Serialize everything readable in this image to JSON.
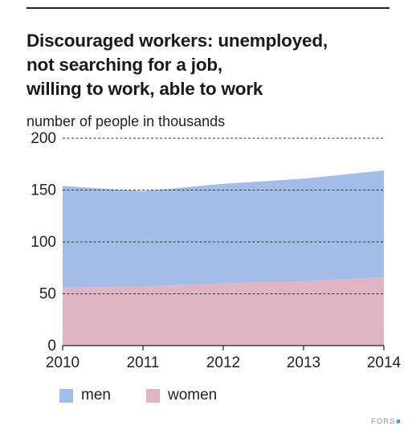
{
  "chart_data": {
    "type": "area",
    "stacked": true,
    "title_lines": [
      "Discouraged workers: unemployed,",
      "not searching for a job,",
      "willing to work, able to work"
    ],
    "ylabel": "number of people in thousands",
    "x": [
      2010,
      2011,
      2012,
      2013,
      2014
    ],
    "x_tick_labels": [
      "2010",
      "2011",
      "2012",
      "2013",
      "2014"
    ],
    "y_ticks": [
      0,
      50,
      100,
      150,
      200
    ],
    "y_tick_labels": [
      "0",
      "50",
      "100",
      "150",
      "200"
    ],
    "ylim": [
      0,
      200
    ],
    "grid": "horizontal dashed",
    "legend_position": "bottom",
    "series": [
      {
        "name": "women",
        "values": [
          56,
          57,
          60,
          62,
          66
        ],
        "color": "#dfb5c3"
      },
      {
        "name": "men",
        "values": [
          98,
          92,
          96,
          99,
          103
        ],
        "color": "#a3bde6"
      }
    ],
    "legend": [
      {
        "label": "men",
        "color": "#a3bde6"
      },
      {
        "label": "women",
        "color": "#dfb5c3"
      }
    ]
  },
  "source": {
    "label": "FORS",
    "accent_color": "#3aa0d8"
  }
}
